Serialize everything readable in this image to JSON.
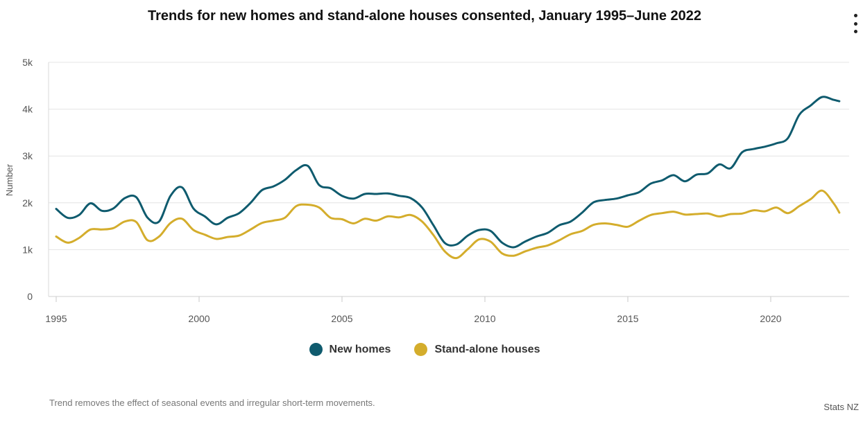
{
  "title": "Trends for new homes and stand-alone houses consented, January 1995–June 2022",
  "footnote": "Trend removes the effect of seasonal events and irregular short-term movements.",
  "credit": "Stats NZ",
  "menu_icon": "kebab-menu-icon",
  "chart_data": {
    "type": "line",
    "title": "Trends for new homes and stand-alone houses consented, January 1995–June 2022",
    "xlabel": "",
    "ylabel": "Number",
    "xlim": [
      1995,
      2022.5
    ],
    "ylim": [
      0,
      5000
    ],
    "x_ticks": [
      "1995",
      "2000",
      "2005",
      "2010",
      "2015",
      "2020"
    ],
    "y_ticks": [
      "0",
      "1k",
      "2k",
      "3k",
      "4k",
      "5k"
    ],
    "grid": true,
    "legend_position": "bottom",
    "x": [
      1995.0,
      1995.4,
      1995.8,
      1996.2,
      1996.6,
      1997.0,
      1997.4,
      1997.8,
      1998.2,
      1998.6,
      1999.0,
      1999.4,
      1999.8,
      2000.2,
      2000.6,
      2001.0,
      2001.4,
      2001.8,
      2002.2,
      2002.6,
      2003.0,
      2003.4,
      2003.8,
      2004.2,
      2004.6,
      2005.0,
      2005.4,
      2005.8,
      2006.2,
      2006.6,
      2007.0,
      2007.4,
      2007.8,
      2008.2,
      2008.6,
      2009.0,
      2009.4,
      2009.8,
      2010.2,
      2010.6,
      2011.0,
      2011.4,
      2011.8,
      2012.2,
      2012.6,
      2013.0,
      2013.4,
      2013.8,
      2014.2,
      2014.6,
      2015.0,
      2015.4,
      2015.8,
      2016.2,
      2016.6,
      2017.0,
      2017.4,
      2017.8,
      2018.2,
      2018.6,
      2019.0,
      2019.4,
      2019.8,
      2020.2,
      2020.6,
      2021.0,
      2021.4,
      2021.8,
      2022.2,
      2022.4
    ],
    "series": [
      {
        "name": "New homes",
        "color": "#0f5b6e",
        "values": [
          1870,
          1680,
          1740,
          1990,
          1830,
          1880,
          2100,
          2120,
          1680,
          1600,
          2150,
          2330,
          1880,
          1710,
          1540,
          1680,
          1780,
          2000,
          2270,
          2350,
          2490,
          2700,
          2790,
          2380,
          2310,
          2150,
          2090,
          2190,
          2190,
          2200,
          2150,
          2100,
          1900,
          1520,
          1140,
          1110,
          1300,
          1420,
          1400,
          1150,
          1050,
          1170,
          1280,
          1360,
          1520,
          1600,
          1790,
          2010,
          2060,
          2090,
          2160,
          2230,
          2410,
          2480,
          2590,
          2460,
          2600,
          2630,
          2820,
          2740,
          3080,
          3150,
          3200,
          3270,
          3380,
          3880,
          4080,
          4260,
          4200,
          4170
        ]
      },
      {
        "name": "Stand-alone houses",
        "color": "#d4ad2c",
        "values": [
          1280,
          1150,
          1250,
          1430,
          1430,
          1460,
          1600,
          1590,
          1200,
          1280,
          1570,
          1660,
          1420,
          1320,
          1230,
          1270,
          1300,
          1430,
          1570,
          1620,
          1680,
          1930,
          1960,
          1900,
          1680,
          1650,
          1560,
          1660,
          1620,
          1710,
          1690,
          1740,
          1600,
          1310,
          960,
          820,
          1010,
          1220,
          1170,
          920,
          870,
          960,
          1040,
          1090,
          1200,
          1330,
          1400,
          1530,
          1560,
          1530,
          1490,
          1620,
          1740,
          1780,
          1810,
          1750,
          1760,
          1770,
          1710,
          1760,
          1770,
          1840,
          1820,
          1900,
          1780,
          1930,
          2080,
          2260,
          1990,
          1790
        ]
      }
    ]
  }
}
